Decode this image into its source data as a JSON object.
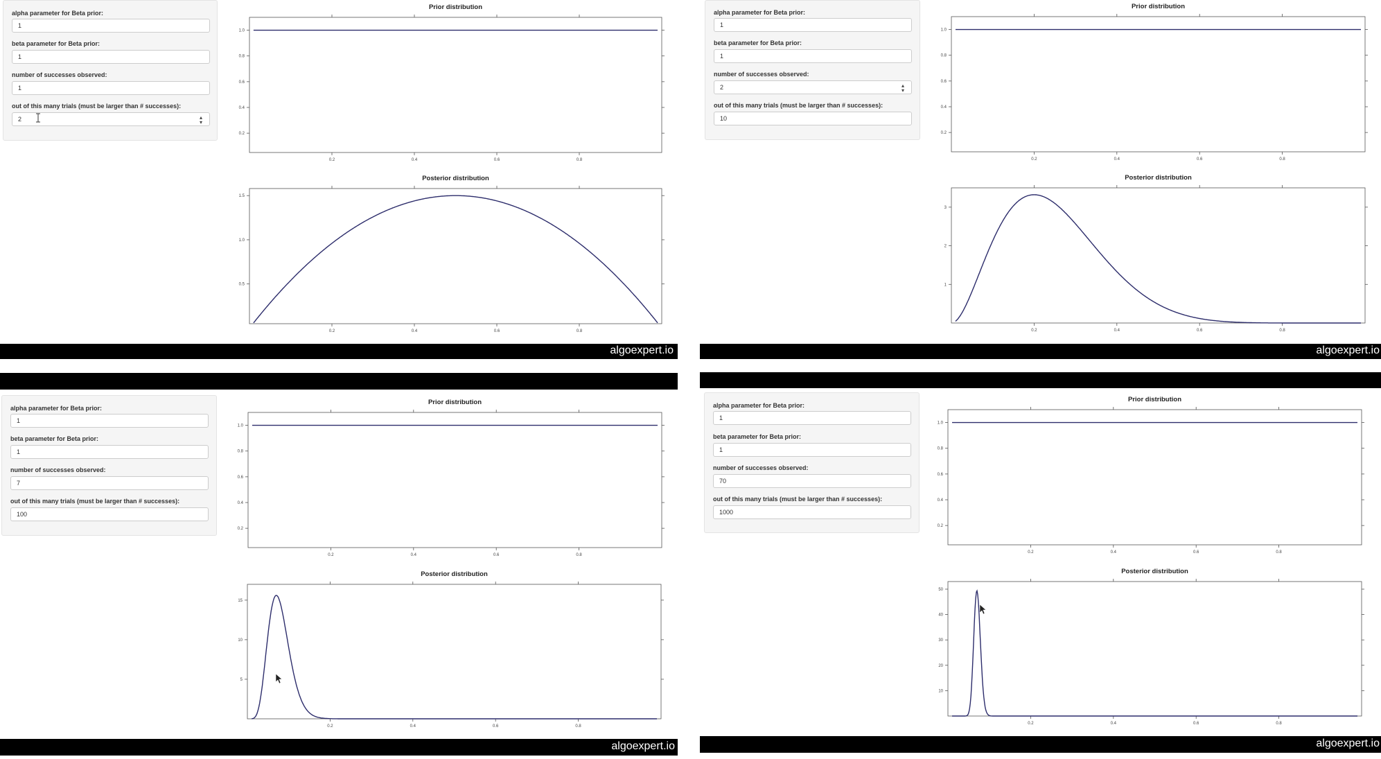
{
  "panels": [
    {
      "form": {
        "alpha_label": "alpha parameter for Beta prior:",
        "alpha_value": "1",
        "beta_label": "beta parameter for Beta prior:",
        "beta_value": "1",
        "successes_label": "number of successes observed:",
        "successes_value": "1",
        "trials_label": "out of this many trials (must be larger than # successes):",
        "trials_value": "2"
      },
      "prior": {
        "title": "Prior distribution",
        "xlim": [
          0,
          1
        ],
        "ylim": [
          0.05,
          1.1
        ],
        "yticks": [
          "0.2",
          "0.4",
          "0.6",
          "0.8",
          "1.0"
        ],
        "ytick_values": [
          0.2,
          0.4,
          0.6,
          0.8,
          1.0
        ],
        "xticks": [
          "0.2",
          "0.4",
          "0.6",
          "0.8"
        ],
        "xtick_values": [
          0.2,
          0.4,
          0.6,
          0.8
        ]
      },
      "posterior": {
        "title": "Posterior distribution",
        "xlim": [
          0,
          1
        ],
        "ylim": [
          0.05,
          1.58
        ],
        "yticks": [
          "0.5",
          "1.0",
          "1.5"
        ],
        "ytick_values": [
          0.5,
          1.0,
          1.5
        ],
        "xticks": [
          "0.2",
          "0.4",
          "0.6",
          "0.8"
        ],
        "xtick_values": [
          0.2,
          0.4,
          0.6,
          0.8
        ]
      },
      "watermark": "algoexpert.io"
    },
    {
      "form": {
        "alpha_label": "alpha parameter for Beta prior:",
        "alpha_value": "1",
        "beta_label": "beta parameter for Beta prior:",
        "beta_value": "1",
        "successes_label": "number of successes observed:",
        "successes_value": "2",
        "trials_label": "out of this many trials (must be larger than # successes):",
        "trials_value": "10"
      },
      "prior": {
        "title": "Prior distribution",
        "xlim": [
          0,
          1
        ],
        "ylim": [
          0.05,
          1.1
        ],
        "yticks": [
          "0.2",
          "0.4",
          "0.6",
          "0.8",
          "1.0"
        ],
        "ytick_values": [
          0.2,
          0.4,
          0.6,
          0.8,
          1.0
        ],
        "xticks": [
          "0.2",
          "0.4",
          "0.6",
          "0.8"
        ],
        "xtick_values": [
          0.2,
          0.4,
          0.6,
          0.8
        ]
      },
      "posterior": {
        "title": "Posterior distribution",
        "xlim": [
          0,
          1
        ],
        "ylim": [
          0,
          3.5
        ],
        "yticks": [
          "1",
          "2",
          "3"
        ],
        "ytick_values": [
          1,
          2,
          3
        ],
        "xticks": [
          "0.2",
          "0.4",
          "0.6",
          "0.8"
        ],
        "xtick_values": [
          0.2,
          0.4,
          0.6,
          0.8
        ]
      },
      "watermark": "algoexpert.io"
    },
    {
      "form": {
        "alpha_label": "alpha parameter for Beta prior:",
        "alpha_value": "1",
        "beta_label": "beta parameter for Beta prior:",
        "beta_value": "1",
        "successes_label": "number of successes observed:",
        "successes_value": "7",
        "trials_label": "out of this many trials (must be larger than # successes):",
        "trials_value": "100"
      },
      "prior": {
        "title": "Prior distribution",
        "xlim": [
          0,
          1
        ],
        "ylim": [
          0.05,
          1.1
        ],
        "yticks": [
          "0.2",
          "0.4",
          "0.6",
          "0.8",
          "1.0"
        ],
        "ytick_values": [
          0.2,
          0.4,
          0.6,
          0.8,
          1.0
        ],
        "xticks": [
          "0.2",
          "0.4",
          "0.6",
          "0.8"
        ],
        "xtick_values": [
          0.2,
          0.4,
          0.6,
          0.8
        ]
      },
      "posterior": {
        "title": "Posterior distribution",
        "xlim": [
          0,
          1
        ],
        "ylim": [
          0,
          17
        ],
        "yticks": [
          "5",
          "10",
          "15"
        ],
        "ytick_values": [
          5,
          10,
          15
        ],
        "xticks": [
          "0.2",
          "0.4",
          "0.6",
          "0.8"
        ],
        "xtick_values": [
          0.2,
          0.4,
          0.6,
          0.8
        ]
      },
      "watermark": "algoexpert.io"
    },
    {
      "form": {
        "alpha_label": "alpha parameter for Beta prior:",
        "alpha_value": "1",
        "beta_label": "beta parameter for Beta prior:",
        "beta_value": "1",
        "successes_label": "number of successes observed:",
        "successes_value": "70",
        "trials_label": "out of this many trials (must be larger than # successes):",
        "trials_value": "1000"
      },
      "prior": {
        "title": "Prior distribution",
        "xlim": [
          0,
          1
        ],
        "ylim": [
          0.05,
          1.1
        ],
        "yticks": [
          "0.2",
          "0.4",
          "0.6",
          "0.8",
          "1.0"
        ],
        "ytick_values": [
          0.2,
          0.4,
          0.6,
          0.8,
          1.0
        ],
        "xticks": [
          "0.2",
          "0.4",
          "0.6",
          "0.8"
        ],
        "xtick_values": [
          0.2,
          0.4,
          0.6,
          0.8
        ]
      },
      "posterior": {
        "title": "Posterior distribution",
        "xlim": [
          0,
          1
        ],
        "ylim": [
          0,
          53
        ],
        "yticks": [
          "10",
          "20",
          "30",
          "40",
          "50"
        ],
        "ytick_values": [
          10,
          20,
          30,
          40,
          50
        ],
        "xticks": [
          "0.2",
          "0.4",
          "0.6",
          "0.8"
        ],
        "xtick_values": [
          0.2,
          0.4,
          0.6,
          0.8
        ]
      },
      "watermark": "algoexpert.io"
    }
  ],
  "chart_data": [
    {
      "type": "line",
      "title": "Prior distribution",
      "xlim": [
        0,
        1
      ],
      "ylim": [
        0.05,
        1.1
      ],
      "series": [
        {
          "x": [
            0,
            1
          ],
          "values": [
            1.0,
            1.0
          ]
        }
      ]
    },
    {
      "type": "line",
      "title": "Posterior distribution",
      "xlim": [
        0,
        1
      ],
      "ylim": [
        0.05,
        1.58
      ],
      "series": [
        {
          "x": [
            0.01,
            0.25,
            0.5,
            0.75,
            0.99
          ],
          "values": [
            0.12,
            1.13,
            1.5,
            1.13,
            0.12
          ]
        }
      ]
    },
    {
      "type": "line",
      "title": "Prior distribution",
      "xlim": [
        0,
        1
      ],
      "ylim": [
        0.05,
        1.1
      ],
      "series": [
        {
          "x": [
            0,
            1
          ],
          "values": [
            1.0,
            1.0
          ]
        }
      ]
    },
    {
      "type": "line",
      "title": "Posterior distribution",
      "xlim": [
        0,
        1
      ],
      "ylim": [
        0,
        3.5
      ],
      "series": [
        {
          "x": [
            0.01,
            0.1,
            0.2,
            0.3,
            0.4,
            0.5,
            0.68
          ],
          "values": [
            0.1,
            2.6,
            3.3,
            2.6,
            1.3,
            0.5,
            0.0
          ]
        }
      ]
    },
    {
      "type": "line",
      "title": "Prior distribution",
      "xlim": [
        0,
        1
      ],
      "ylim": [
        0.05,
        1.1
      ],
      "series": [
        {
          "x": [
            0,
            1
          ],
          "values": [
            1.0,
            1.0
          ]
        }
      ]
    },
    {
      "type": "line",
      "title": "Posterior distribution",
      "xlim": [
        0,
        1
      ],
      "ylim": [
        0,
        17
      ],
      "series": [
        {
          "x": [
            0.02,
            0.04,
            0.07,
            0.1,
            0.14,
            0.19
          ],
          "values": [
            0.1,
            9.0,
            15.8,
            10.5,
            2.0,
            0.0
          ]
        }
      ]
    },
    {
      "type": "line",
      "title": "Prior distribution",
      "xlim": [
        0,
        1
      ],
      "ylim": [
        0.05,
        1.1
      ],
      "series": [
        {
          "x": [
            0,
            1
          ],
          "values": [
            1.0,
            1.0
          ]
        }
      ]
    },
    {
      "type": "line",
      "title": "Posterior distribution",
      "xlim": [
        0,
        1
      ],
      "ylim": [
        0,
        53
      ],
      "series": [
        {
          "x": [
            0.05,
            0.06,
            0.07,
            0.08,
            0.09
          ],
          "values": [
            0.5,
            25.0,
            49.5,
            25.0,
            0.5
          ]
        }
      ]
    }
  ]
}
